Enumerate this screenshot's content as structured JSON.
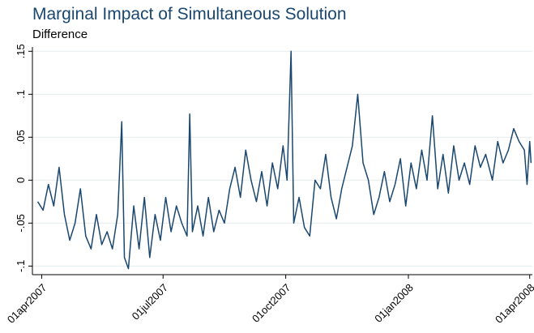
{
  "chart_data": {
    "type": "line",
    "title": "Marginal Impact of Simultaneous Solution",
    "subtitle": "Difference",
    "x": [
      "2007-03-29",
      "2007-04-02",
      "2007-04-06",
      "2007-04-10",
      "2007-04-14",
      "2007-04-18",
      "2007-04-22",
      "2007-04-26",
      "2007-04-30",
      "2007-05-04",
      "2007-05-08",
      "2007-05-12",
      "2007-05-16",
      "2007-05-20",
      "2007-05-24",
      "2007-05-28",
      "2007-05-31",
      "2007-06-02",
      "2007-06-05",
      "2007-06-09",
      "2007-06-13",
      "2007-06-17",
      "2007-06-21",
      "2007-06-25",
      "2007-06-29",
      "2007-07-03",
      "2007-07-07",
      "2007-07-11",
      "2007-07-15",
      "2007-07-19",
      "2007-07-21",
      "2007-07-23",
      "2007-07-27",
      "2007-07-31",
      "2007-08-04",
      "2007-08-08",
      "2007-08-12",
      "2007-08-16",
      "2007-08-20",
      "2007-08-24",
      "2007-08-28",
      "2007-09-01",
      "2007-09-05",
      "2007-09-09",
      "2007-09-13",
      "2007-09-17",
      "2007-09-21",
      "2007-09-25",
      "2007-09-29",
      "2007-10-02",
      "2007-10-04",
      "2007-10-05",
      "2007-10-07",
      "2007-10-11",
      "2007-10-15",
      "2007-10-19",
      "2007-10-23",
      "2007-10-27",
      "2007-10-31",
      "2007-11-04",
      "2007-11-08",
      "2007-11-12",
      "2007-11-16",
      "2007-11-20",
      "2007-11-24",
      "2007-11-28",
      "2007-12-02",
      "2007-12-06",
      "2007-12-10",
      "2007-12-14",
      "2007-12-18",
      "2007-12-22",
      "2007-12-26",
      "2007-12-30",
      "2008-01-03",
      "2008-01-07",
      "2008-01-11",
      "2008-01-15",
      "2008-01-19",
      "2008-01-23",
      "2008-01-27",
      "2008-01-31",
      "2008-02-04",
      "2008-02-08",
      "2008-02-12",
      "2008-02-16",
      "2008-02-20",
      "2008-02-24",
      "2008-02-28",
      "2008-03-04",
      "2008-03-08",
      "2008-03-12",
      "2008-03-16",
      "2008-03-20",
      "2008-03-24",
      "2008-03-28",
      "2008-03-30",
      "2008-04-01",
      "2008-04-02"
    ],
    "series": [
      {
        "name": "Difference",
        "color": "#1a476f",
        "values": [
          -0.025,
          -0.035,
          -0.005,
          -0.03,
          0.015,
          -0.04,
          -0.07,
          -0.05,
          -0.01,
          -0.065,
          -0.08,
          -0.04,
          -0.075,
          -0.06,
          -0.08,
          -0.04,
          0.068,
          -0.09,
          -0.103,
          -0.03,
          -0.08,
          -0.02,
          -0.09,
          -0.04,
          -0.07,
          -0.02,
          -0.06,
          -0.03,
          -0.05,
          -0.065,
          0.077,
          -0.06,
          -0.03,
          -0.065,
          -0.02,
          -0.06,
          -0.035,
          -0.05,
          -0.01,
          0.015,
          -0.02,
          0.035,
          0.0,
          -0.025,
          0.01,
          -0.03,
          0.02,
          -0.01,
          0.04,
          0.0,
          0.1,
          0.15,
          -0.05,
          -0.02,
          -0.055,
          -0.065,
          0.0,
          -0.01,
          0.03,
          -0.02,
          -0.045,
          -0.01,
          0.015,
          0.04,
          0.1,
          0.02,
          0.0,
          -0.04,
          -0.02,
          0.01,
          -0.025,
          -0.005,
          0.025,
          -0.03,
          0.02,
          -0.01,
          0.035,
          0.0,
          0.075,
          -0.01,
          0.03,
          -0.015,
          0.04,
          0.0,
          0.02,
          -0.005,
          0.04,
          0.015,
          0.03,
          0.0,
          0.045,
          0.02,
          0.035,
          0.06,
          0.045,
          0.035,
          -0.005,
          0.045,
          0.02
        ]
      }
    ],
    "xlim": [
      "2007-03-25",
      "2008-04-03"
    ],
    "xticks": [
      {
        "value": "2007-04-01",
        "label": "01apr2007"
      },
      {
        "value": "2007-07-01",
        "label": "01jul2007"
      },
      {
        "value": "2007-10-01",
        "label": "01oct2007"
      },
      {
        "value": "2008-01-01",
        "label": "01jan2008"
      },
      {
        "value": "2008-04-01",
        "label": "01apr2008"
      }
    ],
    "ylim": [
      -0.11,
      0.155
    ],
    "yticks": [
      {
        "value": -0.1,
        "label": "-.1"
      },
      {
        "value": -0.05,
        "label": "-.05"
      },
      {
        "value": 0,
        "label": "0"
      },
      {
        "value": 0.05,
        "label": ".05"
      },
      {
        "value": 0.1,
        "label": ".1"
      },
      {
        "value": 0.15,
        "label": ".15"
      }
    ],
    "grid": true
  }
}
